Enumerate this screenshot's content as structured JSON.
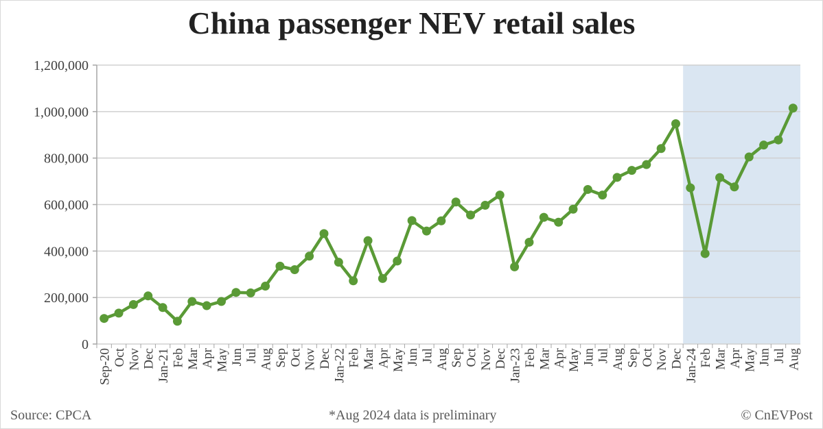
{
  "chart_data": {
    "type": "line",
    "title": "China passenger NEV retail sales",
    "xlabel": "",
    "ylabel": "",
    "ylim": [
      0,
      1200000
    ],
    "yticks": [
      0,
      200000,
      400000,
      600000,
      800000,
      1000000,
      1200000
    ],
    "ytick_labels": [
      "0",
      "200,000",
      "400,000",
      "600,000",
      "800,000",
      "1,000,000",
      "1,200,000"
    ],
    "grid": "horizontal",
    "legend": "none",
    "categories": [
      "Sep-20",
      "Oct",
      "Nov",
      "Dec",
      "Jan-21",
      "Feb",
      "Mar",
      "Apr",
      "May",
      "Jun",
      "Jul",
      "Aug",
      "Sep",
      "Oct",
      "Nov",
      "Dec",
      "Jan-22",
      "Feb",
      "Mar",
      "Apr",
      "May",
      "Jun",
      "Jul",
      "Aug",
      "Sep",
      "Oct",
      "Nov",
      "Dec",
      "Jan-23",
      "Feb",
      "Mar",
      "Apr",
      "May",
      "Jun",
      "Jul",
      "Aug",
      "Sep",
      "Oct",
      "Nov",
      "Dec",
      "Jan-24",
      "Feb",
      "Mar",
      "Apr",
      "May",
      "Jun",
      "Jul",
      "Aug"
    ],
    "values": [
      110000,
      133000,
      170000,
      207000,
      157000,
      98000,
      183000,
      165000,
      183000,
      222000,
      220000,
      249000,
      335000,
      320000,
      378000,
      475000,
      352000,
      272000,
      445000,
      282000,
      357000,
      531000,
      486000,
      530000,
      611000,
      555000,
      597000,
      641000,
      332000,
      438000,
      545000,
      524000,
      580000,
      665000,
      641000,
      717000,
      747000,
      772000,
      841000,
      948000,
      672000,
      389000,
      716000,
      676000,
      805000,
      856000,
      878000,
      1015000
    ],
    "highlight": {
      "from": "Jan-24",
      "to": "Aug",
      "color": "#dae6f2"
    },
    "line_color": "#5a9a36"
  },
  "footer": {
    "source": "Source: CPCA",
    "note": "*Aug 2024 data is preliminary",
    "copyright": "© CnEVPost"
  }
}
